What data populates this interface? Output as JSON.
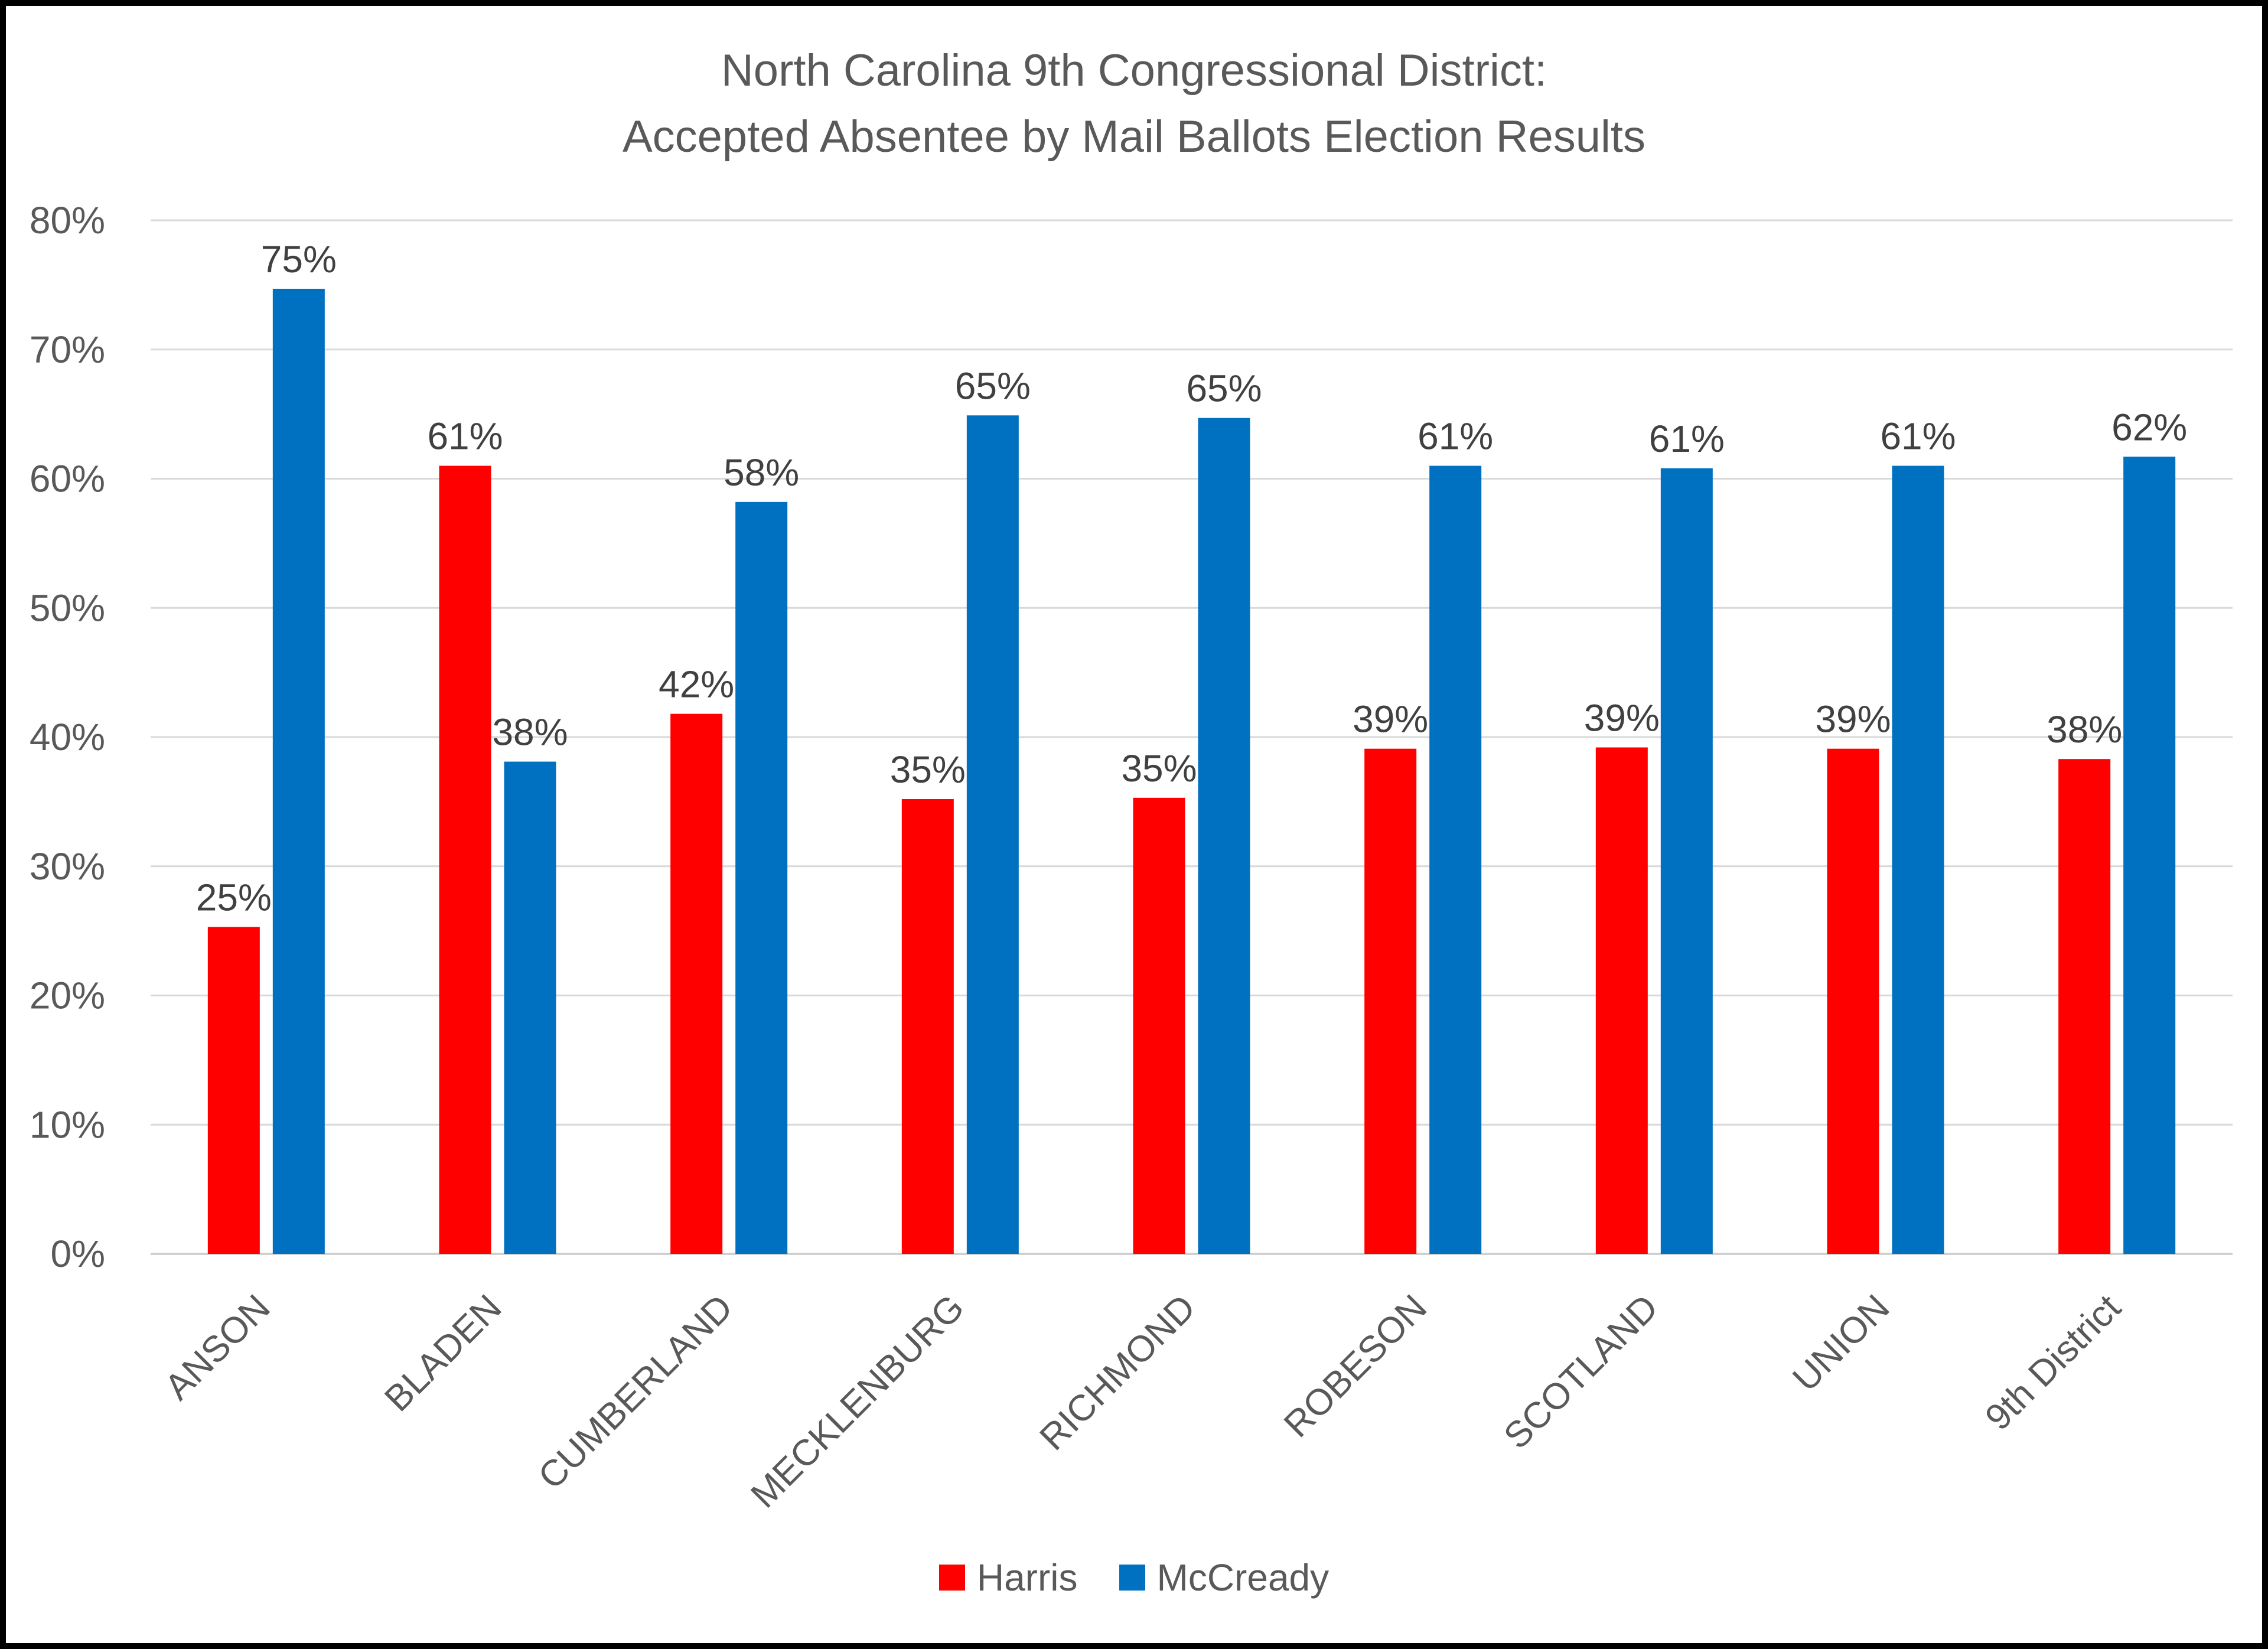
{
  "chart_data": {
    "type": "bar",
    "title": "North Carolina 9th Congressional District:",
    "subtitle": "Accepted Absentee by Mail Ballots Election Results",
    "categories": [
      "ANSON",
      "BLADEN",
      "CUMBERLAND",
      "MECKLENBURG",
      "RICHMOND",
      "ROBESON",
      "SCOTLAND",
      "UNION",
      "9th District"
    ],
    "series": [
      {
        "name": "Harris",
        "color": "#ff0000",
        "values": [
          25.3,
          61.0,
          41.8,
          35.2,
          35.3,
          39.1,
          39.2,
          39.1,
          38.3
        ],
        "labels": [
          "25%",
          "61%",
          "42%",
          "35%",
          "35%",
          "39%",
          "39%",
          "39%",
          "38%"
        ]
      },
      {
        "name": "McCready",
        "color": "#0070c0",
        "values": [
          74.7,
          38.1,
          58.2,
          64.9,
          64.7,
          61.0,
          60.8,
          61.0,
          61.7
        ],
        "labels": [
          "75%",
          "38%",
          "58%",
          "65%",
          "65%",
          "61%",
          "61%",
          "61%",
          "62%"
        ]
      }
    ],
    "ylim": [
      0,
      80
    ],
    "yticks": [
      "0%",
      "10%",
      "20%",
      "30%",
      "40%",
      "50%",
      "60%",
      "70%",
      "80%"
    ],
    "ytick_values": [
      0,
      10,
      20,
      30,
      40,
      50,
      60,
      70,
      80
    ],
    "grid": true,
    "legend": "bottom",
    "xlabel": "",
    "ylabel": ""
  }
}
